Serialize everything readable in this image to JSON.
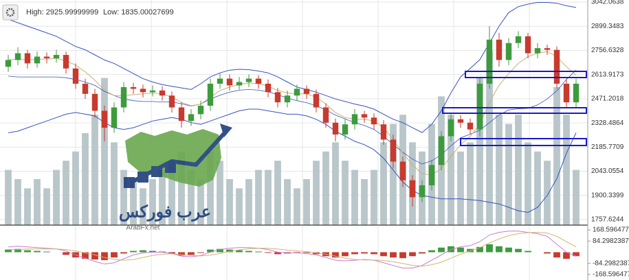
{
  "chart_data": {
    "type": "candlestick",
    "info": [
      "High: 2925.99999999",
      "Low: 1835.00027699"
    ],
    "watermark": [
      "ArabFx.net",
      "عرب فوركس"
    ],
    "ylim": [
      1757.6244,
      3042.0638
    ],
    "yticks": [
      3042.0638,
      2899.3483,
      2756.6328,
      2613.9173,
      2471.2018,
      2328.4864,
      2185.7709,
      2043.0554,
      1900.3399,
      1757.6244
    ],
    "grid": true,
    "up_color": "#3d9b3d",
    "down_color": "#c83a2e",
    "open": [
      2660,
      2700,
      2740,
      2680,
      2720,
      2710,
      2730,
      2650,
      2560,
      2500,
      2400,
      2300,
      2420,
      2540,
      2530,
      2510,
      2520,
      2490,
      2420,
      2340,
      2380,
      2430,
      2560,
      2590,
      2550,
      2570,
      2590,
      2560,
      2510,
      2450,
      2490,
      2530,
      2500,
      2420,
      2330,
      2260,
      2320,
      2380,
      2360,
      2320,
      2230,
      2100,
      1990,
      1890,
      1960,
      2080,
      2250,
      2350,
      2330,
      2290,
      2560,
      2820,
      2700,
      2800,
      2840,
      2740,
      2770,
      2760,
      2560,
      2450
    ],
    "high": [
      2730,
      2775,
      2760,
      2750,
      2745,
      2760,
      2750,
      2680,
      2590,
      2530,
      2430,
      2450,
      2570,
      2565,
      2555,
      2550,
      2545,
      2515,
      2450,
      2410,
      2460,
      2590,
      2620,
      2615,
      2600,
      2615,
      2610,
      2585,
      2535,
      2520,
      2555,
      2550,
      2525,
      2445,
      2355,
      2350,
      2410,
      2400,
      2385,
      2345,
      2260,
      2130,
      2020,
      1990,
      2110,
      2280,
      2380,
      2375,
      2355,
      2590,
      2900,
      2860,
      2830,
      2870,
      2860,
      2800,
      2790,
      2780,
      2590,
      2590
    ],
    "low": [
      2630,
      2670,
      2650,
      2655,
      2680,
      2685,
      2620,
      2530,
      2470,
      2360,
      2220,
      2270,
      2390,
      2500,
      2480,
      2485,
      2460,
      2390,
      2300,
      2310,
      2350,
      2400,
      2530,
      2520,
      2525,
      2540,
      2530,
      2480,
      2420,
      2420,
      2460,
      2470,
      2390,
      2300,
      2220,
      2230,
      2290,
      2330,
      2290,
      2200,
      2060,
      1950,
      1835,
      1860,
      1930,
      2050,
      2220,
      2300,
      2260,
      2250,
      2530,
      2660,
      2670,
      2770,
      2710,
      2710,
      2730,
      2530,
      2420,
      2420
    ],
    "close": [
      2700,
      2740,
      2680,
      2720,
      2710,
      2730,
      2650,
      2560,
      2500,
      2400,
      2300,
      2420,
      2540,
      2530,
      2510,
      2520,
      2490,
      2420,
      2340,
      2380,
      2430,
      2560,
      2590,
      2550,
      2570,
      2590,
      2560,
      2510,
      2450,
      2490,
      2530,
      2500,
      2420,
      2330,
      2260,
      2320,
      2380,
      2360,
      2320,
      2230,
      2100,
      1990,
      1890,
      1960,
      2080,
      2250,
      2350,
      2330,
      2290,
      2560,
      2820,
      2700,
      2800,
      2840,
      2740,
      2770,
      2760,
      2560,
      2450,
      2560
    ],
    "bands": [
      {
        "color": "#3552c4",
        "width": 1,
        "values": [
          2940,
          2920,
          2900,
          2880,
          2860,
          2840,
          2810,
          2780,
          2760,
          2730,
          2700,
          2680,
          2650,
          2620,
          2590,
          2570,
          2555,
          2545,
          2535,
          2526,
          2560,
          2600,
          2624,
          2640,
          2645,
          2643,
          2635,
          2624,
          2600,
          2570,
          2540,
          2526,
          2510,
          2490,
          2470,
          2455,
          2440,
          2428,
          2410,
          2380,
          2350,
          2330,
          2300,
          2272,
          2320,
          2400,
          2506,
          2600,
          2650,
          2702,
          2800,
          2900,
          2980,
          3015,
          3030,
          3040,
          3040,
          3035,
          3020,
          3010
        ]
      },
      {
        "color": "#3552c4",
        "width": 0.8,
        "values": [
          2605,
          2600,
          2600,
          2600,
          2600,
          2600,
          2595,
          2585,
          2570,
          2550,
          2515,
          2490,
          2470,
          2460,
          2455,
          2455,
          2452,
          2452,
          2442,
          2428,
          2440,
          2470,
          2492,
          2510,
          2522,
          2526,
          2522,
          2512,
          2495,
          2475,
          2460,
          2448,
          2430,
          2405,
          2375,
          2352,
          2330,
          2314,
          2290,
          2250,
          2200,
          2155,
          2115,
          2086,
          2105,
          2140,
          2193,
          2240,
          2262,
          2286,
          2330,
          2375,
          2405,
          2412,
          2415,
          2435,
          2470,
          2518,
          2585,
          2640
        ]
      },
      {
        "color": "#3552c4",
        "width": 1,
        "values": [
          2270,
          2280,
          2300,
          2320,
          2340,
          2360,
          2380,
          2390,
          2380,
          2370,
          2330,
          2300,
          2290,
          2300,
          2320,
          2340,
          2350,
          2360,
          2350,
          2330,
          2320,
          2340,
          2360,
          2380,
          2400,
          2410,
          2410,
          2400,
          2390,
          2380,
          2380,
          2370,
          2350,
          2320,
          2280,
          2250,
          2220,
          2200,
          2170,
          2120,
          2050,
          1980,
          1930,
          1900,
          1890,
          1880,
          1880,
          1880,
          1875,
          1870,
          1860,
          1850,
          1830,
          1810,
          1800,
          1830,
          1900,
          2000,
          2150,
          2270
        ]
      },
      {
        "color": "#c9b173",
        "width": 1,
        "values": [
          2700,
          2705,
          2700,
          2705,
          2705,
          2710,
          2695,
          2670,
          2630,
          2580,
          2520,
          2490,
          2490,
          2495,
          2500,
          2505,
          2500,
          2480,
          2450,
          2430,
          2440,
          2480,
          2520,
          2540,
          2555,
          2565,
          2560,
          2545,
          2520,
          2505,
          2500,
          2500,
          2480,
          2440,
          2390,
          2360,
          2350,
          2350,
          2340,
          2300,
          2230,
          2150,
          2080,
          2030,
          2020,
          2060,
          2130,
          2200,
          2250,
          2320,
          2450,
          2550,
          2620,
          2680,
          2720,
          2740,
          2750,
          2720,
          2660,
          2610
        ]
      }
    ],
    "volume_ylim": [
      0,
      100
    ],
    "volume_color": "#b9c6ca",
    "volume": [
      30,
      25,
      20,
      25,
      20,
      30,
      35,
      40,
      50,
      60,
      80,
      45,
      30,
      25,
      20,
      25,
      30,
      35,
      40,
      30,
      25,
      40,
      35,
      25,
      20,
      25,
      30,
      30,
      35,
      25,
      20,
      25,
      35,
      40,
      45,
      35,
      30,
      25,
      30,
      45,
      55,
      60,
      45,
      40,
      55,
      70,
      60,
      40,
      45,
      80,
      95,
      60,
      55,
      60,
      45,
      40,
      35,
      75,
      60,
      30
    ],
    "macd_ylim": [
      -168.5964771,
      168.5964771
    ],
    "macd_yticks": [
      168.5964771,
      84.29823877,
      {
        "value": -84.29823877,
        "label": "-84.2982387"
      },
      {
        "value": -168.5964771,
        "label": "-168.596477"
      }
    ],
    "histogram": [
      20,
      25,
      15,
      10,
      5,
      0,
      -20,
      -40,
      -50,
      -55,
      -60,
      -40,
      -10,
      10,
      15,
      10,
      5,
      -10,
      -25,
      -20,
      -5,
      20,
      25,
      20,
      15,
      10,
      5,
      -5,
      -15,
      -10,
      -5,
      -5,
      -15,
      -30,
      -40,
      -30,
      -15,
      -10,
      -15,
      -30,
      -40,
      -45,
      -30,
      -10,
      15,
      35,
      45,
      35,
      25,
      40,
      60,
      45,
      35,
      25,
      10,
      0,
      -10,
      -40,
      -50,
      -30
    ],
    "macd_lines": [
      {
        "color": "#c77ad6",
        "values": [
          40,
          45,
          40,
          35,
          30,
          25,
          10,
          -20,
          -45,
          -70,
          -90,
          -80,
          -50,
          -20,
          -5,
          0,
          0,
          -10,
          -30,
          -35,
          -25,
          0,
          20,
          30,
          35,
          35,
          30,
          20,
          0,
          -5,
          -5,
          -10,
          -20,
          -40,
          -60,
          -65,
          -60,
          -55,
          -60,
          -80,
          -100,
          -120,
          -120,
          -100,
          -60,
          -20,
          20,
          40,
          50,
          80,
          130,
          150,
          160,
          160,
          150,
          140,
          120,
          60,
          0,
          -30
        ]
      },
      {
        "color": "#d2b46e",
        "values": [
          20,
          20,
          25,
          25,
          25,
          25,
          20,
          10,
          -5,
          -20,
          -40,
          -55,
          -60,
          -55,
          -40,
          -25,
          -15,
          -12,
          -18,
          -25,
          -28,
          -22,
          -10,
          5,
          18,
          26,
          30,
          30,
          24,
          16,
          10,
          5,
          -5,
          -15,
          -30,
          -45,
          -55,
          -58,
          -59,
          -62,
          -72,
          -85,
          -100,
          -105,
          -95,
          -75,
          -45,
          -15,
          10,
          35,
          70,
          100,
          125,
          140,
          148,
          150,
          145,
          120,
          80,
          40
        ]
      }
    ]
  }
}
